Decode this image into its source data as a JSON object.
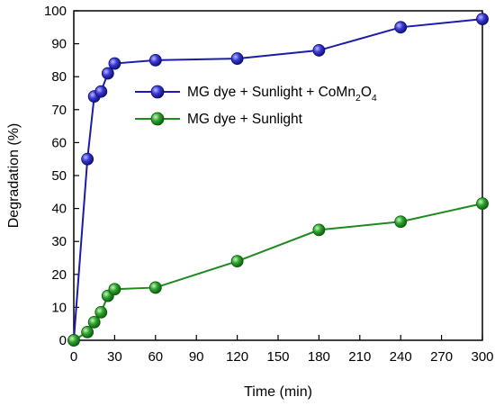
{
  "chart_data": {
    "type": "line",
    "title": "",
    "xlabel": "Time (min)",
    "ylabel": "Degradation (%)",
    "xlim": [
      0,
      300
    ],
    "ylim": [
      0,
      100
    ],
    "xticks": [
      0,
      30,
      60,
      90,
      120,
      150,
      180,
      210,
      240,
      270,
      300
    ],
    "yticks": [
      0,
      10,
      20,
      30,
      40,
      50,
      60,
      70,
      80,
      90,
      100
    ],
    "grid": false,
    "legend_position": "center-right",
    "series": [
      {
        "name": "MG dye + Sunlight + CoMn2O4",
        "legend_parts": {
          "a": "MG dye + Sunlight + CoMn",
          "sub1": "2",
          "b": "O",
          "sub2": "4"
        },
        "color": "#1c1caa",
        "x": [
          0,
          10,
          15,
          20,
          25,
          30,
          60,
          120,
          180,
          240,
          300
        ],
        "y": [
          0,
          55,
          74,
          75.5,
          81,
          84,
          85,
          85.5,
          88,
          95,
          97.5
        ]
      },
      {
        "name": "MG dye + Sunlight",
        "color": "#1f8a1f",
        "x": [
          0,
          10,
          15,
          20,
          25,
          30,
          60,
          120,
          180,
          240,
          300
        ],
        "y": [
          0,
          2.5,
          5.5,
          8.5,
          13.5,
          15.5,
          16,
          24,
          33.5,
          36,
          41.5
        ]
      }
    ]
  }
}
